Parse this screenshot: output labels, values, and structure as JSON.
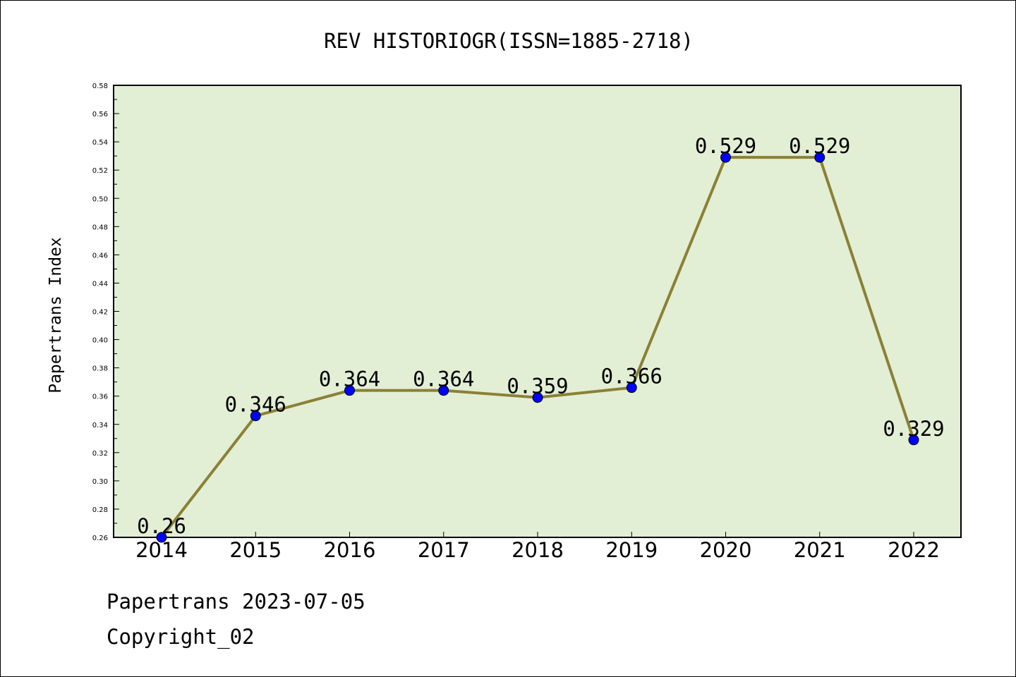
{
  "chart_data": {
    "type": "line",
    "title": "REV HISTORIOGR(ISSN=1885-2718)",
    "ylabel": "Papertrans Index",
    "xlabel": "",
    "categories": [
      "2014",
      "2015",
      "2016",
      "2017",
      "2018",
      "2019",
      "2020",
      "2021",
      "2022"
    ],
    "series": [
      {
        "values": [
          0.26,
          0.346,
          0.364,
          0.364,
          0.359,
          0.366,
          0.529,
          0.529,
          0.329
        ]
      }
    ],
    "data_labels": [
      "0.26",
      "0.346",
      "0.364",
      "0.364",
      "0.359",
      "0.366",
      "0.529",
      "0.529",
      "0.329"
    ],
    "ylim": [
      0.26,
      0.58
    ],
    "y_ticks": [
      "0.26",
      "0.28",
      "0.30",
      "0.32",
      "0.34",
      "0.36",
      "0.38",
      "0.40",
      "0.42",
      "0.44",
      "0.46",
      "0.48",
      "0.50",
      "0.52",
      "0.54",
      "0.56",
      "0.58"
    ],
    "grid": false,
    "colors": {
      "plot_background": "#e2efd5",
      "line": "#8b8035",
      "marker": "#0000ff"
    }
  },
  "footer": {
    "source_line": "Papertrans 2023-07-05",
    "copyright_line": "Copyright_02"
  }
}
